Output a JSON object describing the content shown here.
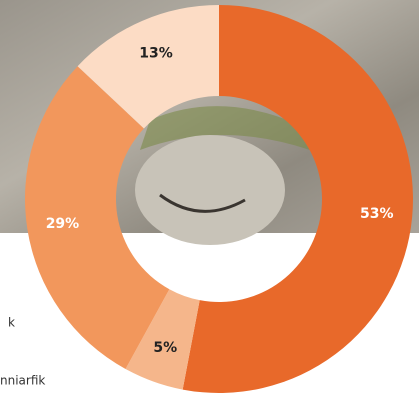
{
  "chart_data": {
    "type": "donut",
    "values": [
      53,
      5,
      29,
      13
    ],
    "value_labels": [
      "53%",
      "5%",
      "29%",
      "13%"
    ],
    "colors": [
      "#e8692a",
      "#f5b68b",
      "#f2975c",
      "#fcdcc5"
    ],
    "label_colors": [
      "#ffffff",
      "#222222",
      "#ffffff",
      "#222222"
    ]
  },
  "background_text": [
    "k",
    "nniarfik"
  ]
}
